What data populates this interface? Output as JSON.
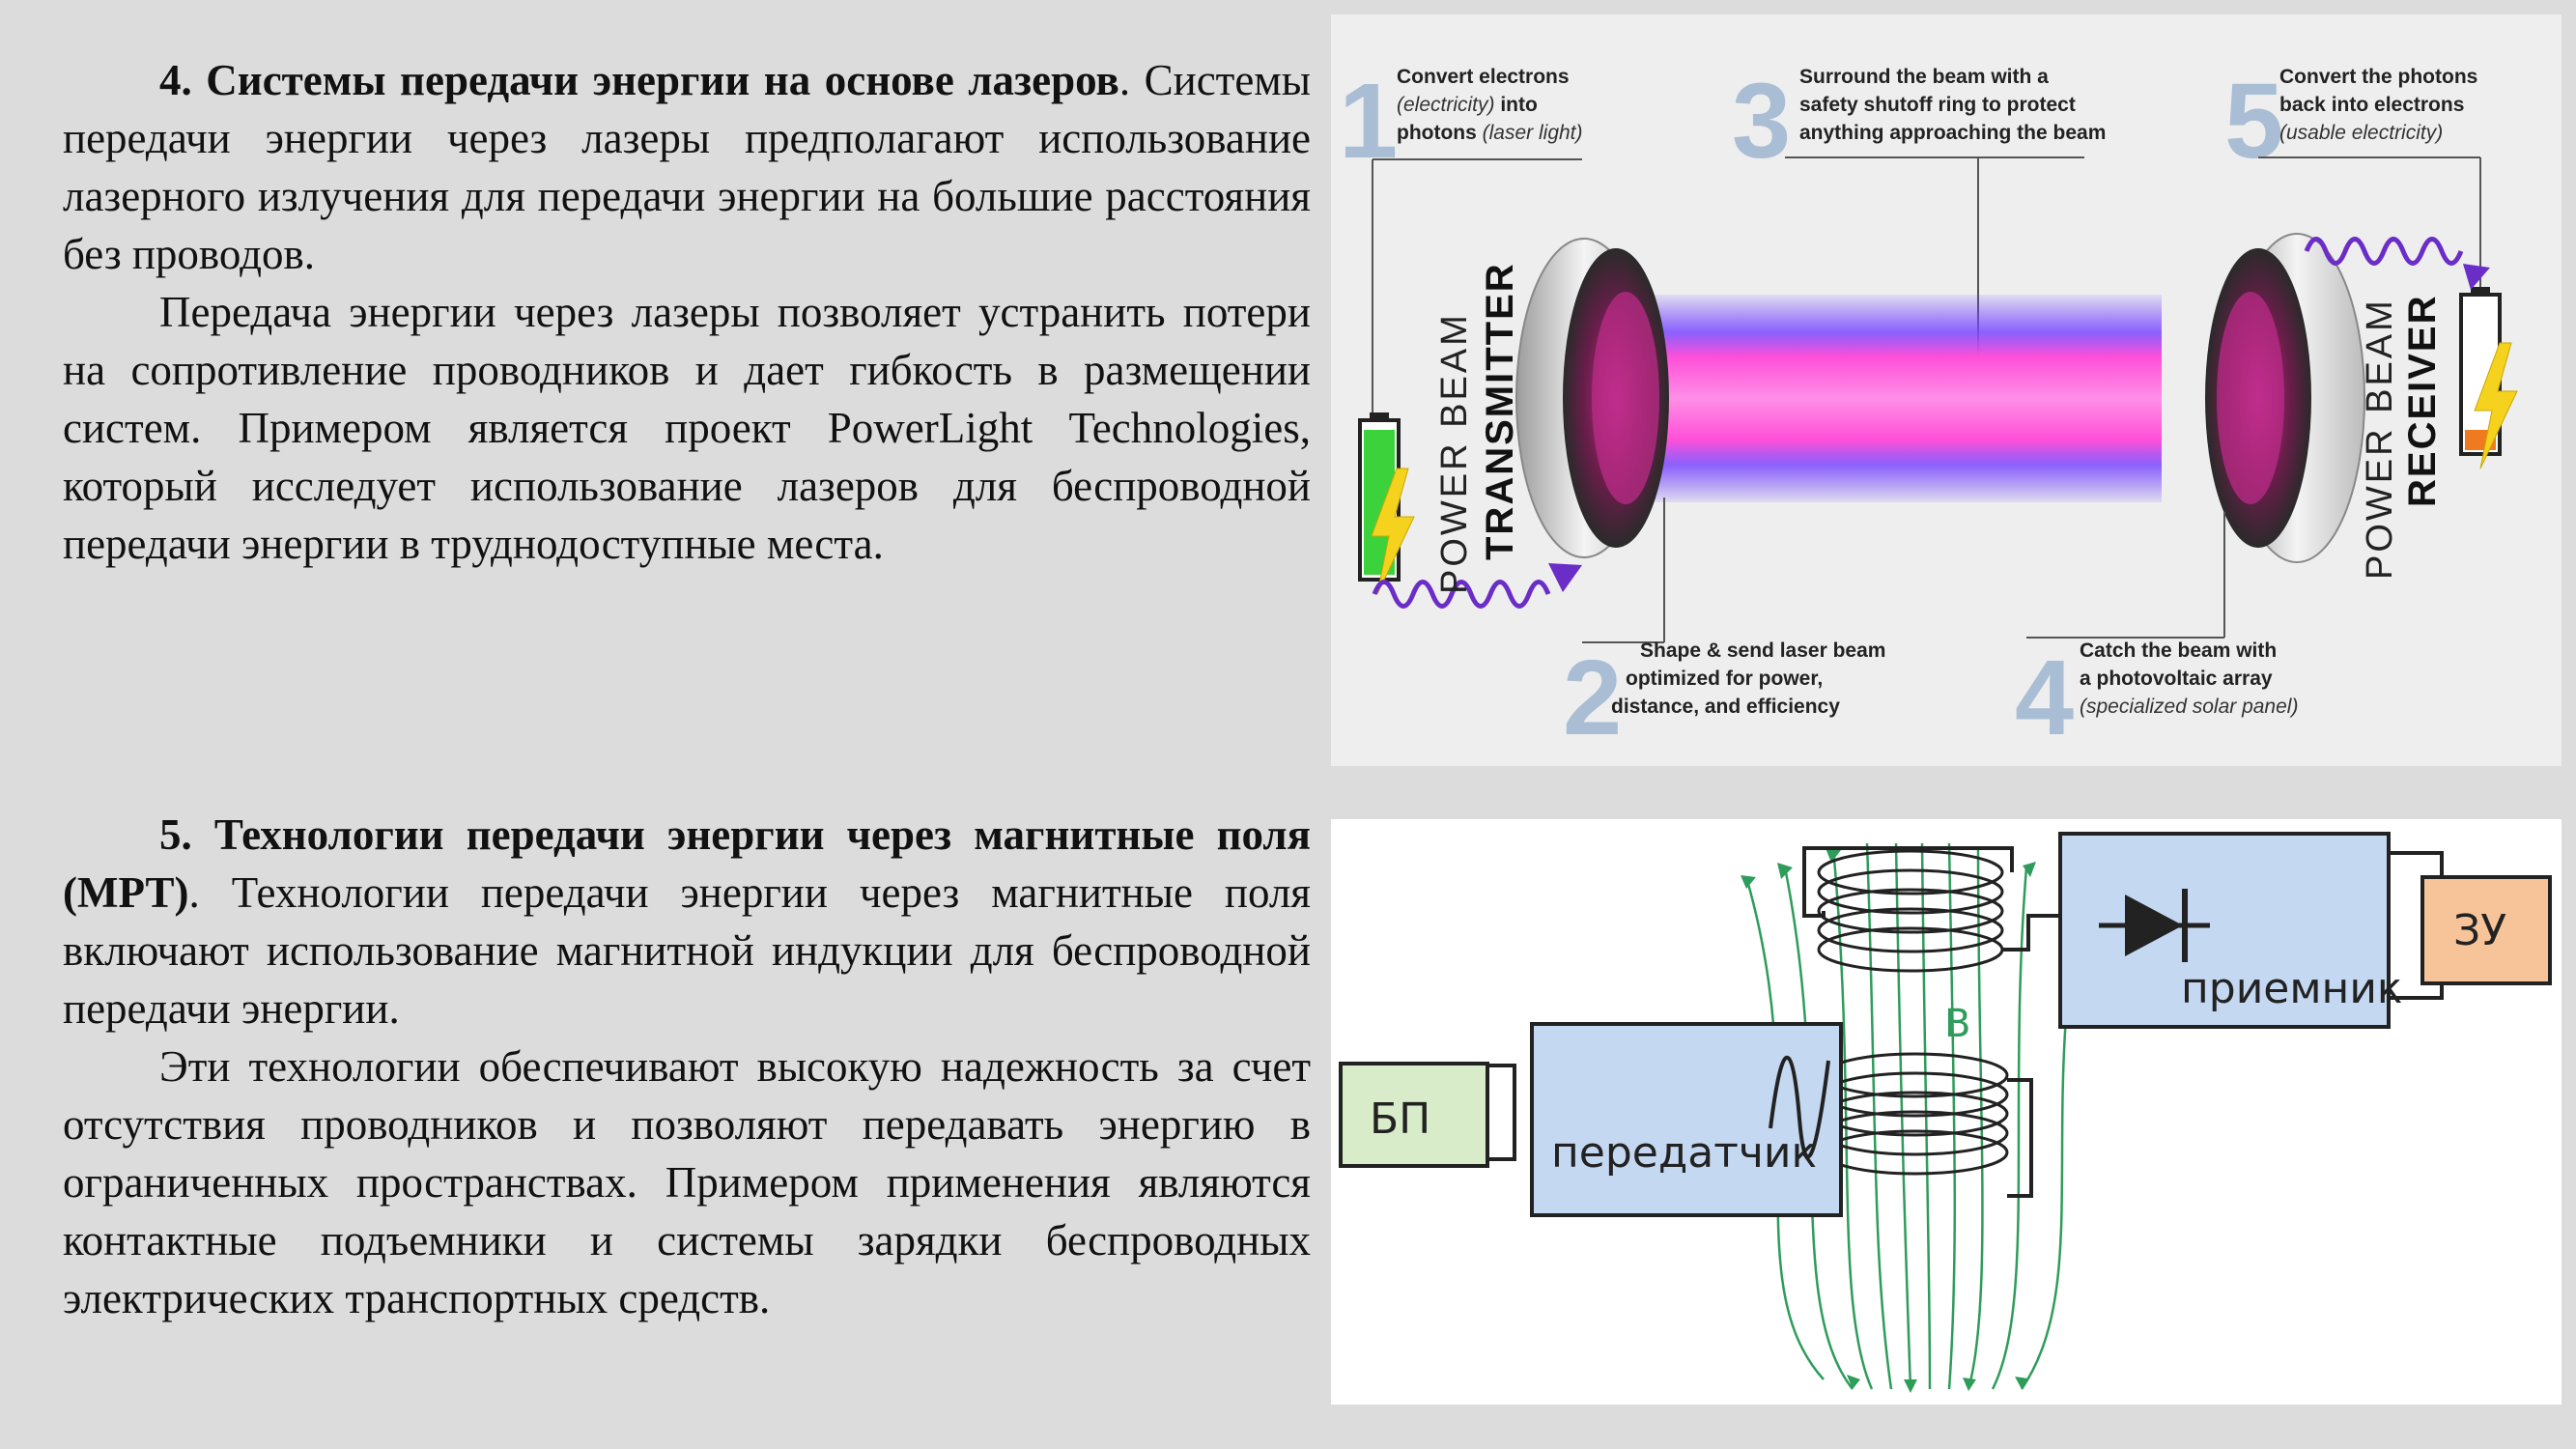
{
  "section4": {
    "number": "4.",
    "title": "Системы передачи энергии на основе лазеров",
    "title_end": ".",
    "para1_rest": "Системы передачи энергии через лазеры предполагают использование лазерного излучения для передачи энергии на большие расстояния без проводов.",
    "para2": "Передача энергии через лазеры позволяет устранить потери на сопротивление проводников и дает гибкость в размещении систем. Примером является проект PowerLight Technologies, который исследует использование лазеров для беспроводной передачи энергии в труднодоступные места."
  },
  "section5": {
    "number": "5.",
    "title": "Технологии передачи энергии через магнитные поля (МРТ)",
    "title_end": ".",
    "para1_rest": "Технологии передачи энергии через магнитные поля включают использование магнитной индукции для беспроводной передачи энергии.",
    "para2": "Эти технологии обеспечивают высокую надежность за счет отсутствия проводников и позволяют передавать энергию в ограниченных пространствах. Примером применения являются контактные подъемники и системы зарядки беспроводных электрических транспортных средств."
  },
  "laser_diagram": {
    "steps": [
      {
        "num": "1",
        "line1": "Convert electrons",
        "line2_italic": "(electricity)",
        "line2_rest": " into",
        "line3": "photons",
        "line3_italic": " (laser light)"
      },
      {
        "num": "2",
        "line1": "Shape & send laser beam",
        "line2": "optimized for power,",
        "line3": "distance, and efficiency"
      },
      {
        "num": "3",
        "line1": "Surround the beam with a",
        "line2": "safety shutoff ring to protect",
        "line3": "anything approaching the beam"
      },
      {
        "num": "4",
        "line1": "Catch the beam with",
        "line2": "a photovoltaic array",
        "line3_italic": "(specialized solar panel)"
      },
      {
        "num": "5",
        "line1": "Convert the photons",
        "line2": "back into electrons",
        "line3_italic": "(usable electricity)"
      }
    ],
    "transmitter_light": "POWER BEAM",
    "transmitter_bold": "TRANSMITTER",
    "receiver_light": "POWER BEAM",
    "receiver_bold": "RECEIVER",
    "colors": {
      "beam": "#ff4fd8",
      "beam_glow": "#6a3cff",
      "battery_left": "#3cd23c",
      "bolt": "#f5d21e",
      "battery_right": "#f07a20"
    }
  },
  "mpt_diagram": {
    "power_supply": "БП",
    "transmitter": "передатчик",
    "receiver": "приемник",
    "charger": "ЗУ",
    "field_label": "B",
    "colors": {
      "ps_fill": "#d9ecc9",
      "box_fill": "#c4d8f1",
      "charger_fill": "#f7c49a",
      "field": "#2e9c5a"
    }
  }
}
